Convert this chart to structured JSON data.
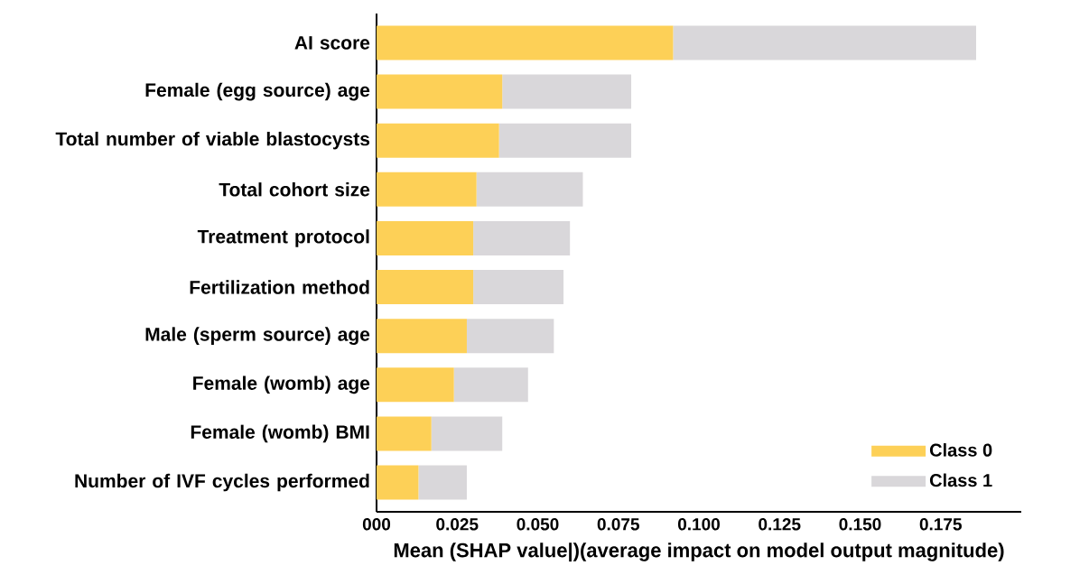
{
  "chart_data": {
    "type": "bar",
    "orientation": "horizontal",
    "stacked": true,
    "categories": [
      "AI score",
      "Female (egg source) age",
      "Total number of viable blastocysts",
      "Total cohort size",
      "Treatment protocol",
      "Fertilization method",
      "Male (sperm source) age",
      "Female (womb) age",
      "Female (womb) BMI",
      "Number of IVF cycles performed"
    ],
    "series": [
      {
        "name": "Class 0",
        "color": "#fdd057",
        "values": [
          0.092,
          0.039,
          0.038,
          0.031,
          0.03,
          0.03,
          0.028,
          0.024,
          0.017,
          0.013
        ]
      },
      {
        "name": "Class 1",
        "color": "#d9d7da",
        "values": [
          0.094,
          0.04,
          0.041,
          0.033,
          0.03,
          0.028,
          0.027,
          0.023,
          0.022,
          0.015
        ]
      }
    ],
    "xlabel": "Mean (SHAP value|)(average impact on model output magnitude)",
    "xlim": [
      0,
      0.2
    ],
    "xticks": [
      {
        "value": 0,
        "label": "000"
      },
      {
        "value": 0.025,
        "label": "0.025"
      },
      {
        "value": 0.05,
        "label": "0.050"
      },
      {
        "value": 0.075,
        "label": "0.075"
      },
      {
        "value": 0.1,
        "label": "0.100"
      },
      {
        "value": 0.125,
        "label": "0.125"
      },
      {
        "value": 0.15,
        "label": "0.150"
      },
      {
        "value": 0.175,
        "label": "0.175"
      }
    ],
    "legend": "bottom right",
    "grid": false
  }
}
